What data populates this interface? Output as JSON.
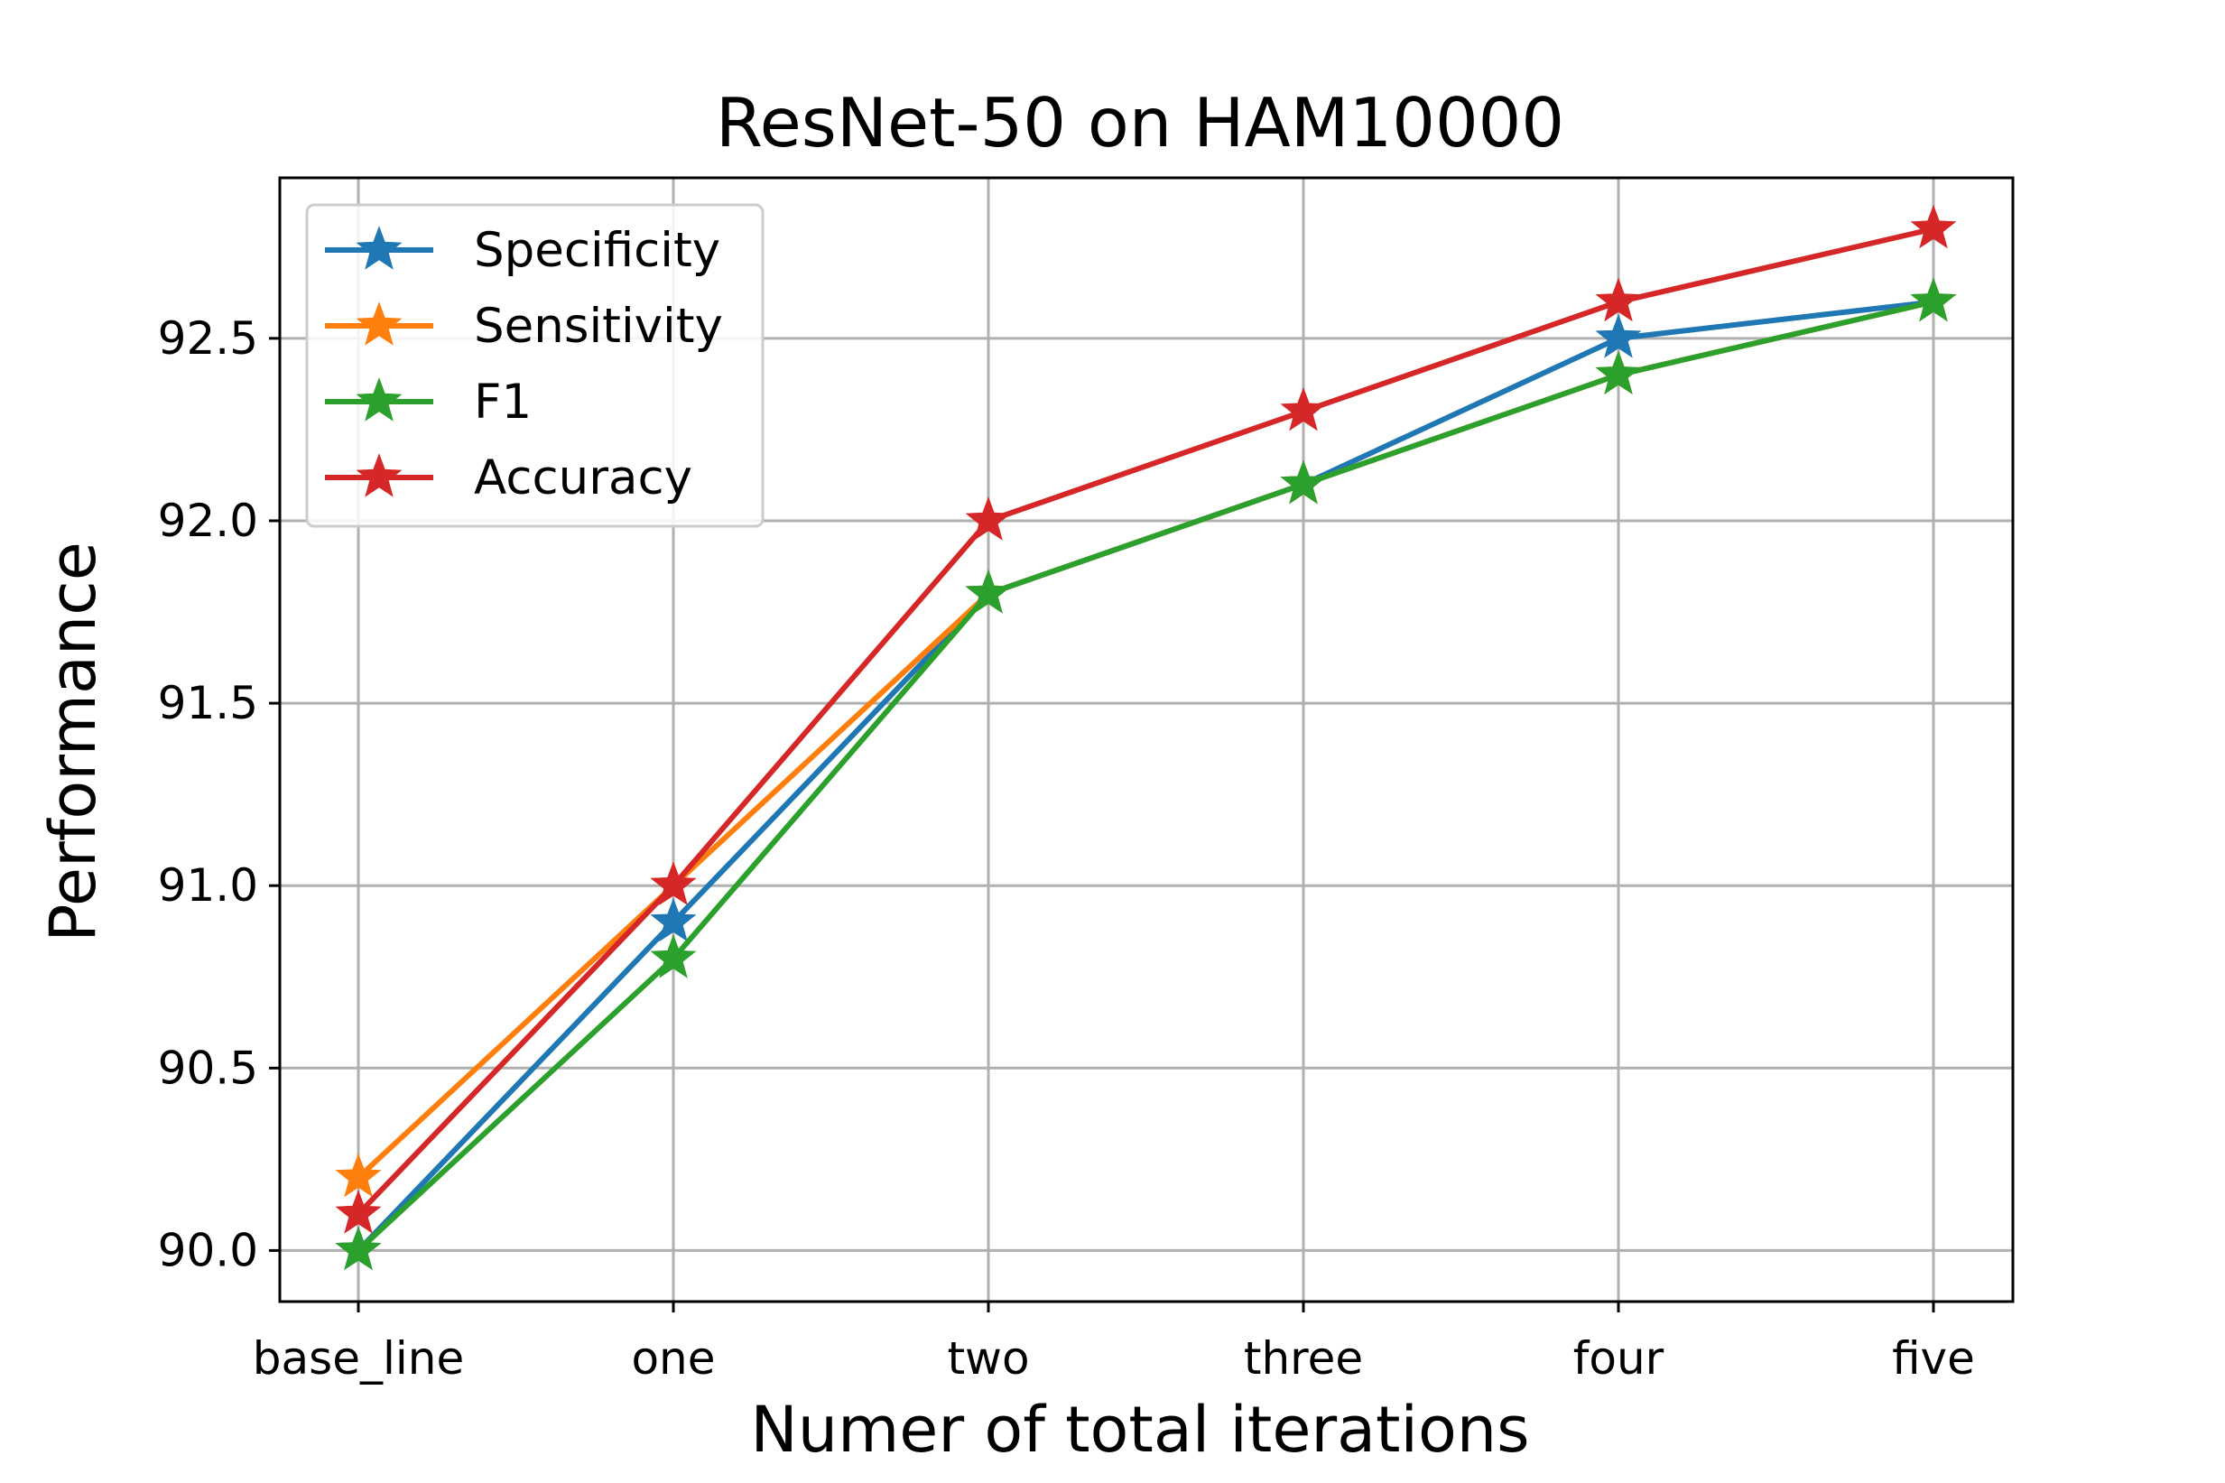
{
  "chart_data": {
    "type": "line",
    "title": "ResNet-50 on HAM10000",
    "xlabel": "Numer of total iterations",
    "ylabel": "Performance",
    "categories": [
      "base_line",
      "one",
      "two",
      "three",
      "four",
      "five"
    ],
    "yticks": [
      90.0,
      90.5,
      91.0,
      91.5,
      92.0,
      92.5
    ],
    "yticklabels": [
      "90.0",
      "90.5",
      "91.0",
      "91.5",
      "92.0",
      "92.5"
    ],
    "ylim": [
      89.86,
      92.94
    ],
    "grid": true,
    "legend_position": "top-left",
    "marker": "star",
    "series": [
      {
        "name": "Specificity",
        "color": "#1f77b4",
        "values": [
          90.0,
          90.9,
          91.8,
          92.1,
          92.5,
          92.6
        ]
      },
      {
        "name": "Sensitivity",
        "color": "#ff7f0e",
        "values": [
          90.2,
          91.0,
          91.8,
          92.1,
          92.4,
          92.6
        ]
      },
      {
        "name": "F1",
        "color": "#2ca02c",
        "values": [
          90.0,
          90.8,
          91.8,
          92.1,
          92.4,
          92.6
        ]
      },
      {
        "name": "Accuracy",
        "color": "#d62728",
        "values": [
          90.1,
          91.0,
          92.0,
          92.3,
          92.6,
          92.8
        ]
      }
    ]
  }
}
